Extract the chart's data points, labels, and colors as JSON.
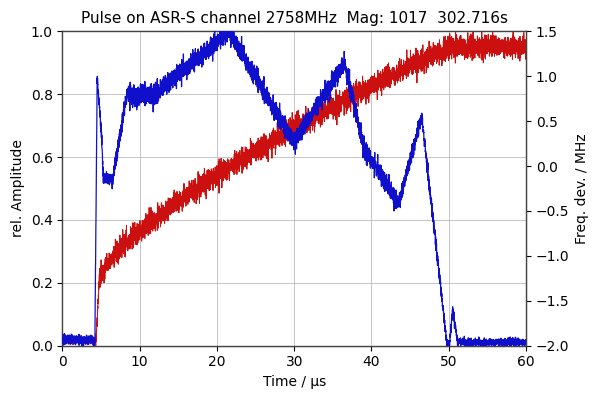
{
  "title": "Pulse on ASR-S channel 2758MHz  Mag: 1017  302.716s",
  "xlabel": "Time / μs",
  "ylabel_left": "rel. Amplitude",
  "ylabel_right": "Freq. dev. / MHz",
  "xlim": [
    0,
    60
  ],
  "ylim_left": [
    0,
    1
  ],
  "ylim_right": [
    -2,
    1.5
  ],
  "xticks": [
    0,
    10,
    20,
    30,
    40,
    50,
    60
  ],
  "yticks_left": [
    0,
    0.2,
    0.4,
    0.6,
    0.8,
    1.0
  ],
  "yticks_right": [
    -2.0,
    -1.5,
    -1.0,
    -0.5,
    0.0,
    0.5,
    1.0,
    1.5
  ],
  "grid_color": "#bbbbbb",
  "bg_color": "#ffffff",
  "blue_color": "#1010cc",
  "red_color": "#cc1010",
  "title_fontsize": 11,
  "axis_fontsize": 10,
  "tick_fontsize": 10,
  "figsize": [
    6.0,
    4.0
  ],
  "dpi": 100
}
